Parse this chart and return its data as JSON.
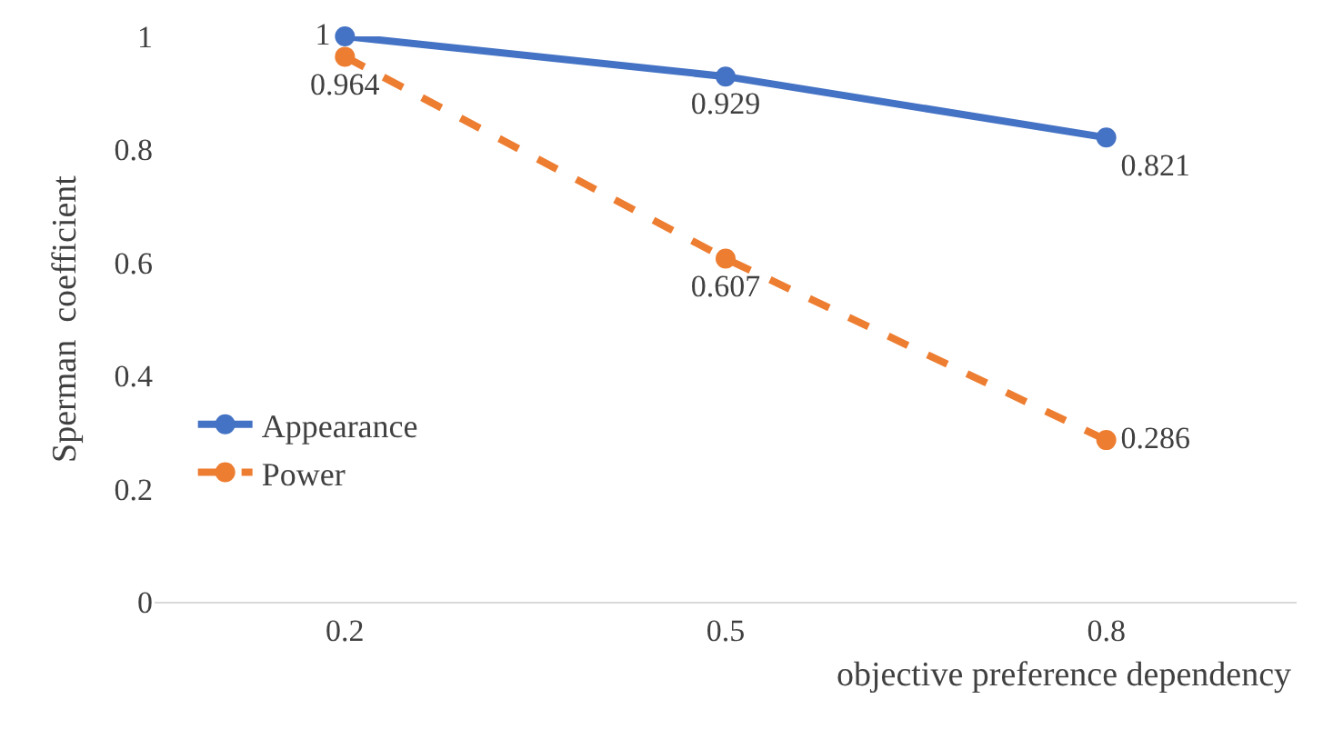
{
  "chart_data": {
    "type": "line",
    "xlabel": "objective preference dependency",
    "ylabel": "Sperman  coefficient",
    "categories": [
      "0.2",
      "0.5",
      "0.8"
    ],
    "series": [
      {
        "name": "Appearance",
        "color": "#4472c4",
        "values": [
          1,
          0.929,
          0.821
        ],
        "line_style": "solid"
      },
      {
        "name": "Power",
        "color": "#ed7d31",
        "values": [
          0.964,
          0.607,
          0.286
        ],
        "line_style": "dashed"
      }
    ],
    "ylim": [
      0,
      1.0
    ],
    "yticks": [
      0,
      0.2,
      0.4,
      0.6,
      0.8,
      1
    ],
    "legend": "bottom left",
    "marker": "circle",
    "data_labels": true
  }
}
